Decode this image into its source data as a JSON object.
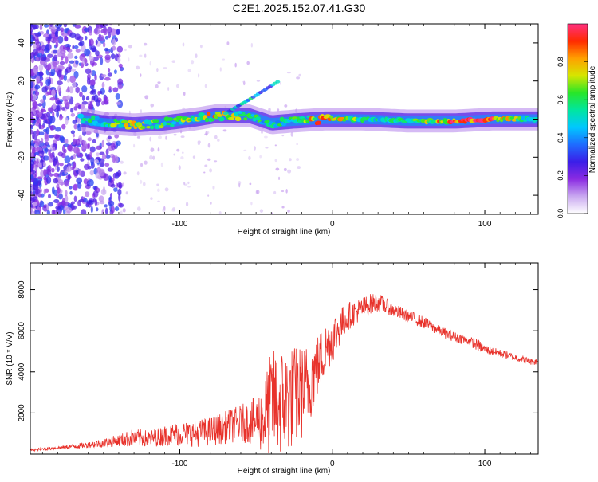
{
  "title": "C2E1.2025.152.07.41.G30",
  "colors": {
    "snr_line": "#e8322b",
    "frame": "#000000",
    "background": "#ffffff"
  },
  "chart_data": [
    {
      "type": "heatmap",
      "name": "spectrogram",
      "xlabel": "Height of straight line (km)",
      "ylabel": "Frequency (Hz)",
      "xlim": [
        -198,
        135
      ],
      "ylim": [
        -50,
        50
      ],
      "x_ticks": [
        -100,
        0,
        100
      ],
      "x_tick_labels": [
        "-100",
        "0",
        "100"
      ],
      "y_ticks": [
        -40,
        -20,
        0,
        20,
        40
      ],
      "y_tick_labels": [
        "-40",
        "-20",
        "0",
        "20",
        "40"
      ],
      "colorbar": {
        "label": "Normalized spectral amplitude",
        "range": [
          0,
          1
        ],
        "ticks": [
          0.0,
          0.2,
          0.4,
          0.6,
          0.8
        ],
        "tick_labels": [
          "0.0",
          "0.2",
          "0.4",
          "0.6",
          "0.8"
        ],
        "colormap": [
          "#ffffff",
          "#c9a8f0",
          "#8a2be2",
          "#3b1ee8",
          "#1e6cff",
          "#00c8ff",
          "#00e6a0",
          "#28e628",
          "#d6e600",
          "#ffa000",
          "#ff2a00",
          "#ff3080"
        ]
      },
      "band": {
        "description_free_center_hz": 0,
        "segments": [
          {
            "x": -165,
            "freq": 0,
            "amp": 0.5
          },
          {
            "x": -150,
            "freq": -2,
            "amp": 0.55
          },
          {
            "x": -130,
            "freq": -3,
            "amp": 0.75
          },
          {
            "x": -110,
            "freq": -2,
            "amp": 0.6
          },
          {
            "x": -90,
            "freq": 0,
            "amp": 0.65
          },
          {
            "x": -75,
            "freq": 2,
            "amp": 0.8
          },
          {
            "x": -55,
            "freq": 2,
            "amp": 0.6
          },
          {
            "x": -40,
            "freq": -2,
            "amp": 0.5
          },
          {
            "x": -25,
            "freq": -1,
            "amp": 0.6
          },
          {
            "x": -5,
            "freq": 0,
            "amp": 0.85
          },
          {
            "x": 20,
            "freq": 0,
            "amp": 0.6
          },
          {
            "x": 50,
            "freq": -1,
            "amp": 0.55
          },
          {
            "x": 80,
            "freq": -1,
            "amp": 0.9
          },
          {
            "x": 105,
            "freq": 0,
            "amp": 0.95
          },
          {
            "x": 130,
            "freq": 0,
            "amp": 0.5
          }
        ],
        "diagonal_feature": [
          {
            "x": -70,
            "freq": 3
          },
          {
            "x": -55,
            "freq": 10
          },
          {
            "x": -35,
            "freq": 20
          }
        ]
      }
    },
    {
      "type": "line",
      "name": "snr",
      "xlabel": "Height of straight line (km)",
      "ylabel": "SNR (10 * V/V)",
      "xlim": [
        -198,
        135
      ],
      "ylim": [
        0,
        9300
      ],
      "x_ticks": [
        -100,
        0,
        100
      ],
      "x_tick_labels": [
        "-100",
        "0",
        "100"
      ],
      "y_ticks": [
        2000,
        4000,
        6000,
        8000
      ],
      "y_tick_labels": [
        "2000",
        "4000",
        "6000",
        "8000"
      ],
      "series": [
        {
          "x": [
            -198,
            -180,
            -160,
            -140,
            -130,
            -120,
            -110,
            -100,
            -90,
            -80,
            -70,
            -60,
            -50,
            -45,
            -40,
            -35,
            -30,
            -25,
            -20,
            -15,
            -10,
            -5,
            0,
            5,
            10,
            15,
            20,
            25,
            30,
            35,
            40,
            50,
            60,
            70,
            80,
            90,
            95,
            100,
            105,
            110,
            120,
            130,
            135
          ],
          "values": [
            200,
            300,
            450,
            650,
            800,
            750,
            900,
            1000,
            1000,
            1100,
            1300,
            1500,
            1600,
            1700,
            2500,
            2500,
            2600,
            2800,
            3000,
            3500,
            4200,
            5000,
            5600,
            6200,
            6700,
            6900,
            7100,
            7300,
            7400,
            7200,
            7000,
            6700,
            6400,
            6000,
            5700,
            5500,
            5300,
            5100,
            5000,
            4900,
            4700,
            4500,
            4500
          ],
          "noise": [
            60,
            80,
            150,
            300,
            450,
            400,
            500,
            600,
            650,
            700,
            800,
            900,
            1200,
            1800,
            2600,
            2700,
            2600,
            2500,
            2300,
            2000,
            1600,
            1400,
            1200,
            900,
            700,
            600,
            550,
            500,
            450,
            400,
            350,
            300,
            300,
            250,
            250,
            220,
            300,
            220,
            200,
            200,
            180,
            170,
            170
          ]
        }
      ]
    }
  ]
}
